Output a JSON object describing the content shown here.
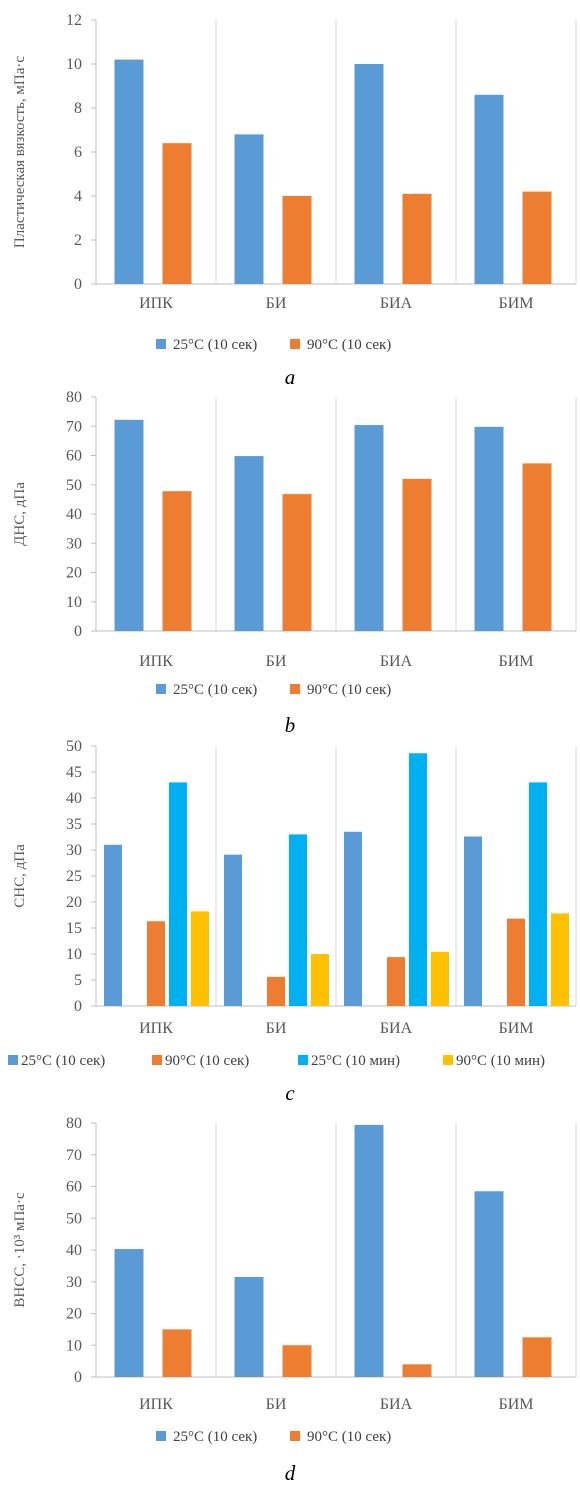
{
  "colors": {
    "blue": "#5b9bd5",
    "orange": "#ed7d31",
    "cyan": "#00b0f0",
    "yellow": "#ffc000",
    "grid": "#d9d9d9",
    "axis": "#bfbfbf"
  },
  "chart_data": [
    {
      "type": "bar",
      "caption": "a",
      "title": "",
      "xlabel": "",
      "ylabel": "Пластическая вязкость, мПа·с",
      "categories": [
        "ИПК",
        "БИ",
        "БИА",
        "БИМ"
      ],
      "ylim": [
        0,
        12
      ],
      "yticks": [
        "0",
        "2",
        "4",
        "6",
        "8",
        "10",
        "12"
      ],
      "grid": "vertical",
      "legend_position": "bottom",
      "series": [
        {
          "name": "25°С (10 сек)",
          "values": [
            10.2,
            6.8,
            10.0,
            8.6
          ]
        },
        {
          "name": "90°С (10 сек)",
          "values": [
            6.4,
            4.0,
            4.1,
            4.2
          ]
        }
      ]
    },
    {
      "type": "bar",
      "caption": "b",
      "title": "",
      "xlabel": "",
      "ylabel": "ДНС, дПа",
      "categories": [
        "ИПК",
        "БИ",
        "БИА",
        "БИМ"
      ],
      "ylim": [
        0,
        80
      ],
      "yticks": [
        "0",
        "10",
        "20",
        "30",
        "40",
        "50",
        "60",
        "70",
        "80"
      ],
      "grid": "vertical",
      "legend_position": "bottom",
      "series": [
        {
          "name": "25°С (10 сек)",
          "values": [
            72.2,
            59.8,
            70.4,
            69.8
          ]
        },
        {
          "name": "90°С (10 сек)",
          "values": [
            47.8,
            46.8,
            52.0,
            57.3
          ]
        }
      ]
    },
    {
      "type": "bar",
      "caption": "c",
      "title": "",
      "xlabel": "",
      "ylabel": "СНС, дПа",
      "categories": [
        "ИПК",
        "БИ",
        "БИА",
        "БИМ"
      ],
      "ylim": [
        0,
        50
      ],
      "yticks": [
        "0",
        "5",
        "10",
        "15",
        "20",
        "25",
        "30",
        "35",
        "40",
        "45",
        "50"
      ],
      "grid": "vertical",
      "legend_position": "bottom",
      "series": [
        {
          "name": "25°С (10 сек)",
          "values": [
            31.0,
            29.1,
            33.5,
            32.6
          ]
        },
        {
          "name": "90°С (10 сек)",
          "values": [
            16.3,
            5.6,
            9.4,
            16.8
          ]
        },
        {
          "name": "25°С (10 мин)",
          "values": [
            43.0,
            33.0,
            48.6,
            43.0
          ]
        },
        {
          "name": "90°С (10 мин)",
          "values": [
            18.2,
            10.0,
            10.4,
            17.8
          ]
        }
      ]
    },
    {
      "type": "bar",
      "caption": "d",
      "title": "",
      "xlabel": "",
      "ylabel": "ВНСС, ·10³ мПа·с",
      "categories": [
        "ИПК",
        "БИ",
        "БИА",
        "БИМ"
      ],
      "ylim": [
        0,
        80
      ],
      "yticks": [
        "0",
        "10",
        "20",
        "30",
        "40",
        "50",
        "60",
        "70",
        "80"
      ],
      "grid": "vertical",
      "legend_position": "bottom",
      "series": [
        {
          "name": "25°С (10 сек)",
          "values": [
            40.3,
            31.5,
            79.4,
            58.5
          ]
        },
        {
          "name": "90°С (10 сек)",
          "values": [
            15.0,
            10.0,
            4.0,
            12.5
          ]
        }
      ]
    }
  ]
}
